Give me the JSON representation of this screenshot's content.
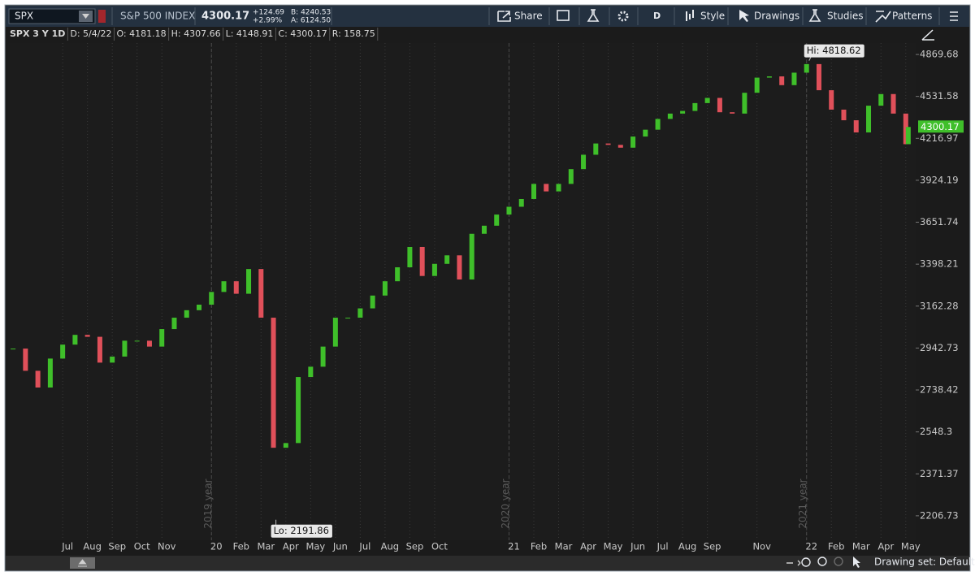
{
  "toolbar": {
    "symbol": "SPX",
    "description": "S&P 500 INDEX",
    "last": "4300.17",
    "change": "+124.69",
    "change_percent": "+2.99%",
    "bid": "B: 4240.53",
    "ask": "A: 6124.50",
    "buttons": [
      "Share",
      "D",
      "Style",
      "Drawings",
      "Studies",
      "Patterns"
    ]
  },
  "info_bar": [
    "SPX 3 Y 1D",
    "D: 5/4/22",
    "O: 4181.18",
    "H: 4307.66",
    "L: 4148.91",
    "C: 4300.17",
    "R: 158.75"
  ],
  "footer": {
    "drawing_set": "Drawing set: Default"
  },
  "chart_data": {
    "type": "candlestick",
    "log_scale": true,
    "grid": true,
    "up_color": "#3fbf2a",
    "down_color": "#e0505a",
    "x": [
      0,
      0.5,
      1,
      1.5,
      2,
      2.5,
      3,
      3.5,
      4,
      4.5,
      5,
      5.5,
      6,
      6.5,
      7,
      7.5,
      8,
      8.5,
      9,
      9.5,
      10,
      10.5,
      11,
      11.5,
      12,
      12.5,
      13,
      13.5,
      14,
      14.5,
      15,
      15.5,
      16,
      16.5,
      17,
      17.5,
      18,
      18.5,
      19,
      19.5,
      20,
      20.5,
      21,
      21.5,
      22,
      22.5,
      23,
      23.5,
      24,
      24.5,
      25,
      25.5,
      26,
      26.5,
      27,
      27.5,
      28,
      28.5,
      29,
      29.5,
      30,
      30.5,
      31,
      31.5,
      32,
      32.5,
      33,
      33.5,
      34,
      34.5,
      35,
      35.5,
      36,
      36.1
    ],
    "close": [
      2940,
      2830,
      2750,
      2890,
      2960,
      3010,
      3000,
      2870,
      2900,
      2980,
      2980,
      2950,
      3040,
      3100,
      3140,
      3170,
      3240,
      3300,
      3230,
      3370,
      3100,
      2480,
      2500,
      2800,
      2850,
      2950,
      3100,
      3100,
      3150,
      3220,
      3300,
      3380,
      3500,
      3330,
      3400,
      3450,
      3310,
      3580,
      3630,
      3700,
      3750,
      3800,
      3900,
      3850,
      3900,
      4000,
      4100,
      4180,
      4170,
      4150,
      4230,
      4280,
      4360,
      4400,
      4420,
      4480,
      4520,
      4410,
      4400,
      4560,
      4680,
      4690,
      4620,
      4720,
      4790,
      4580,
      4430,
      4350,
      4260,
      4460,
      4550,
      4400,
      4175,
      4300.17
    ],
    "xlim": [
      -0.2,
      36.4
    ],
    "xticks": [
      {
        "value": 2,
        "label": "Jul"
      },
      {
        "value": 3,
        "label": "Aug"
      },
      {
        "value": 4,
        "label": "Sep"
      },
      {
        "value": 5,
        "label": "Oct"
      },
      {
        "value": 6,
        "label": "Nov"
      },
      {
        "value": 8,
        "label": "20"
      },
      {
        "value": 9,
        "label": "Feb"
      },
      {
        "value": 10,
        "label": "Mar"
      },
      {
        "value": 11,
        "label": "Apr"
      },
      {
        "value": 12,
        "label": "May"
      },
      {
        "value": 13,
        "label": "Jun"
      },
      {
        "value": 14,
        "label": "Jul"
      },
      {
        "value": 15,
        "label": "Aug"
      },
      {
        "value": 16,
        "label": "Sep"
      },
      {
        "value": 17,
        "label": "Oct"
      },
      {
        "value": 20,
        "label": "21"
      },
      {
        "value": 21,
        "label": "Feb"
      },
      {
        "value": 22,
        "label": "Mar"
      },
      {
        "value": 23,
        "label": "Apr"
      },
      {
        "value": 24,
        "label": "May"
      },
      {
        "value": 25,
        "label": "Jun"
      },
      {
        "value": 26,
        "label": "Jul"
      },
      {
        "value": 27,
        "label": "Aug"
      },
      {
        "value": 28,
        "label": "Sep"
      },
      {
        "value": 30,
        "label": "Nov"
      },
      {
        "value": 32,
        "label": "22"
      },
      {
        "value": 33,
        "label": "Feb"
      },
      {
        "value": 34,
        "label": "Mar"
      },
      {
        "value": 35,
        "label": "Apr"
      },
      {
        "value": 36,
        "label": "May"
      }
    ],
    "year_markers": [
      {
        "value": 8,
        "label": "2019 year"
      },
      {
        "value": 20,
        "label": "2020 year"
      },
      {
        "value": 32,
        "label": "2021 year"
      }
    ],
    "ylim": [
      2116,
      4966
    ],
    "yticks": [
      2206.73,
      2371.37,
      2548.3,
      2738.42,
      2942.73,
      3162.28,
      3398.21,
      3651.74,
      3924.19,
      4216.97,
      4531.58,
      4869.68
    ],
    "annotations": [
      {
        "label": "Hi: 4818.62",
        "value": 4818.62,
        "x": 32.1
      },
      {
        "label": "Lo: 2191.86",
        "value": 2191.86,
        "x": 10.6
      }
    ],
    "last_price": {
      "value": 4300.17,
      "label": "4300.17",
      "color": "#3fbf2a"
    }
  }
}
